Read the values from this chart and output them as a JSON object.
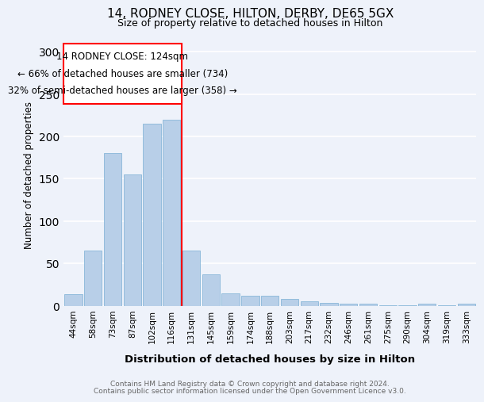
{
  "title1": "14, RODNEY CLOSE, HILTON, DERBY, DE65 5GX",
  "title2": "Size of property relative to detached houses in Hilton",
  "xlabel": "Distribution of detached houses by size in Hilton",
  "ylabel": "Number of detached properties",
  "bar_labels": [
    "44sqm",
    "58sqm",
    "73sqm",
    "87sqm",
    "102sqm",
    "116sqm",
    "131sqm",
    "145sqm",
    "159sqm",
    "174sqm",
    "188sqm",
    "203sqm",
    "217sqm",
    "232sqm",
    "246sqm",
    "261sqm",
    "275sqm",
    "290sqm",
    "304sqm",
    "319sqm",
    "333sqm"
  ],
  "bar_values": [
    14,
    65,
    180,
    155,
    215,
    220,
    65,
    37,
    15,
    12,
    12,
    8,
    5,
    3,
    2,
    2,
    1,
    1,
    2,
    1,
    2
  ],
  "bar_color": "#b8cfe8",
  "bar_edgecolor": "#7aafd4",
  "vline_color": "red",
  "annotation_title": "14 RODNEY CLOSE: 124sqm",
  "annotation_line1": "← 66% of detached houses are smaller (734)",
  "annotation_line2": "32% of semi-detached houses are larger (358) →",
  "ylim": [
    0,
    310
  ],
  "yticks": [
    0,
    50,
    100,
    150,
    200,
    250,
    300
  ],
  "footer1": "Contains HM Land Registry data © Crown copyright and database right 2024.",
  "footer2": "Contains public sector information licensed under the Open Government Licence v3.0.",
  "bg_color": "#eef2fa"
}
